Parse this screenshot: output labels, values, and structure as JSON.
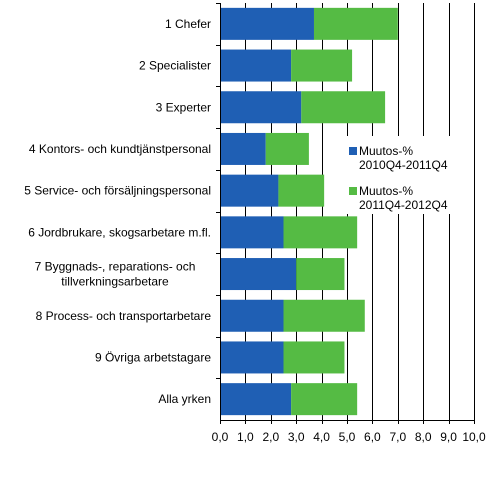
{
  "chart_data": {
    "type": "bar",
    "orientation": "horizontal",
    "stacked": true,
    "categories": [
      "1 Chefer",
      "2 Specialister",
      "3 Experter",
      "4 Kontors- och kundtjänstpersonal",
      "5 Service- och försäljningspersonal",
      "6 Jordbrukare,  skogsarbetare m.fl.",
      "7 Byggnads-, reparations- och\ntillverkningsarbetare",
      "8 Process- och transportarbetare",
      "9 Övriga arbetstagare",
      "Alla yrken"
    ],
    "series": [
      {
        "name": "Muutos-%\n2010Q4-2011Q4",
        "color": "#1f5fb4",
        "values": [
          3.7,
          2.8,
          3.2,
          1.8,
          2.3,
          2.5,
          3.0,
          2.5,
          2.5,
          2.8
        ]
      },
      {
        "name": "Muutos-%\n2011Q4-2012Q4",
        "color": "#55bb44",
        "values": [
          3.3,
          2.4,
          3.3,
          1.7,
          1.8,
          2.9,
          1.9,
          3.2,
          2.4,
          2.6
        ]
      }
    ],
    "xlim": [
      0,
      10
    ],
    "xticks": [
      "0,0",
      "1,0",
      "2,0",
      "3,0",
      "4,0",
      "5,0",
      "6,0",
      "7,0",
      "8,0",
      "9,0",
      "10,0"
    ],
    "grid": "vertical",
    "legend_position": "right"
  }
}
